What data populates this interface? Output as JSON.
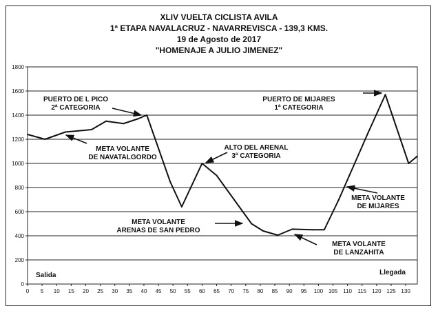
{
  "chart_data": {
    "type": "line",
    "title": [
      "XLIV VUELTA CICLISTA AVILA",
      "1ª ETAPA NAVALACRUZ - NAVARREVISCA - 139,3 KMS.",
      "19 de Agosto de 2017",
      "\"HOMENAJE A JULIO JIMENEZ\""
    ],
    "xlabel": "",
    "ylabel": "",
    "xlim": [
      0,
      134
    ],
    "ylim": [
      0,
      1800
    ],
    "x_ticks": [
      0,
      5,
      10,
      15,
      20,
      25,
      30,
      35,
      40,
      45,
      50,
      55,
      60,
      65,
      70,
      75,
      80,
      85,
      90,
      95,
      100,
      105,
      110,
      115,
      120,
      125,
      130
    ],
    "y_ticks": [
      0,
      200,
      400,
      600,
      800,
      1000,
      1200,
      1400,
      1600,
      1800
    ],
    "grid": "horizontal",
    "series": [
      {
        "name": "",
        "x": [
          0,
          6,
          13,
          22,
          27,
          33,
          38,
          41,
          49,
          53,
          60,
          65,
          77,
          81,
          86,
          91,
          98,
          102,
          107,
          117,
          123,
          131,
          134
        ],
        "y": [
          1240,
          1200,
          1260,
          1280,
          1350,
          1330,
          1370,
          1400,
          850,
          640,
          1000,
          900,
          500,
          440,
          405,
          455,
          450,
          450,
          700,
          1250,
          1570,
          1000,
          1060
        ]
      }
    ],
    "annotations": [
      {
        "lines": [
          "PUERTO DE L PICO",
          "2ª CATEGORIA"
        ]
      },
      {
        "lines": [
          "META VOLANTE",
          "DE NAVATALGORDO"
        ]
      },
      {
        "lines": [
          "ALTO DEL ARENAL",
          "3ª CATEGORIA"
        ]
      },
      {
        "lines": [
          "META VOLANTE",
          "ARENAS DE SAN PEDRO"
        ]
      },
      {
        "lines": [
          "META VOLANTE",
          "DE LANZAHITA"
        ]
      },
      {
        "lines": [
          "PUERTO DE MIJARES",
          "1ª CATEGORIA"
        ]
      },
      {
        "lines": [
          "META VOLANTE",
          "DE MIJARES"
        ]
      },
      {
        "lines": [
          "Salida"
        ]
      },
      {
        "lines": [
          "Llegada"
        ]
      }
    ],
    "line_color": "#111111"
  }
}
